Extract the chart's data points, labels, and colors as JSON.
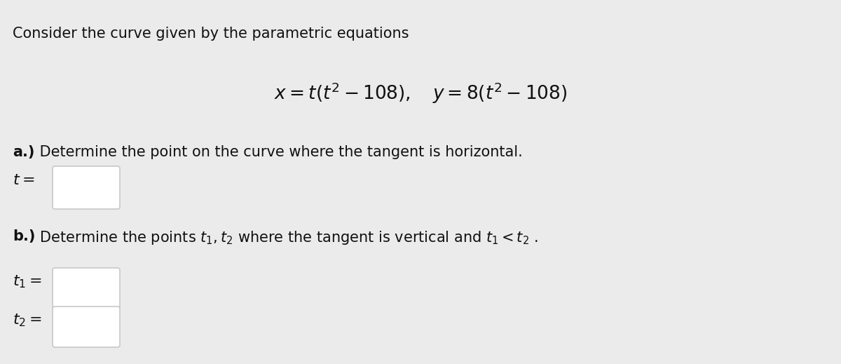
{
  "background_color": "#ebebeb",
  "title_text": "Consider the curve given by the parametric equations",
  "equation": "$x = t(t^2 - 108), \\quad y = 8(t^2 - 108)$",
  "part_a_label": "a.)",
  "part_a_desc": " Determine the point on the curve where the tangent is horizontal.",
  "label_t": "$t = $",
  "part_b_label": "b.)",
  "part_b_desc": " Determine the points $t_1, t_2$ where the tangent is vertical and $t_1 < t_2$ .",
  "label_t1": "$t_1 = $",
  "label_t2": "$t_2 = $",
  "box_facecolor": "#ffffff",
  "box_edgecolor": "#c8c8c8",
  "text_color": "#111111",
  "font_size_title": 15,
  "font_size_eq": 19,
  "font_size_parts": 15,
  "font_size_labels": 16,
  "fig_width": 12.0,
  "fig_height": 5.19,
  "dpi": 100
}
